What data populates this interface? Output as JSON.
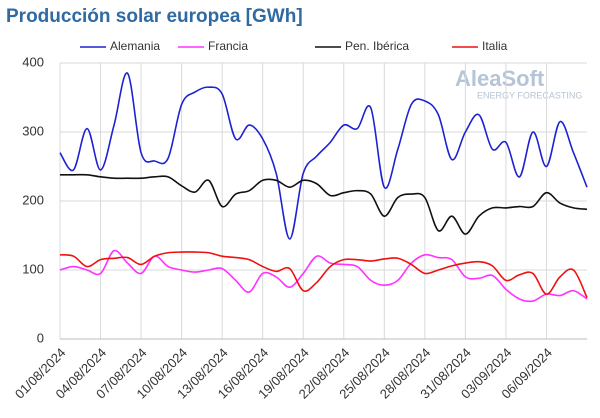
{
  "chart_data": {
    "type": "line",
    "title": "Producción solar europea [GWh]",
    "watermark": {
      "brand": "AleaSoft",
      "tagline": "ENERGY FORECASTING"
    },
    "categories": [
      "01/08/2024",
      null,
      null,
      "04/08/2024",
      null,
      null,
      "07/08/2024",
      null,
      null,
      "10/08/2024",
      null,
      null,
      "13/08/2024",
      null,
      null,
      "16/08/2024",
      null,
      null,
      "19/08/2024",
      null,
      null,
      "22/08/2024",
      null,
      null,
      "25/08/2024",
      null,
      null,
      "28/08/2024",
      null,
      null,
      "31/08/2024",
      null,
      null,
      "03/09/2024",
      null,
      null,
      "06/09/2024",
      null,
      null,
      null
    ],
    "series": [
      {
        "name": "Alemania",
        "color": "#1f22d1",
        "values": [
          270,
          245,
          305,
          245,
          310,
          385,
          270,
          258,
          262,
          340,
          358,
          365,
          355,
          290,
          310,
          290,
          240,
          145,
          240,
          265,
          285,
          310,
          305,
          335,
          220,
          275,
          340,
          345,
          325,
          260,
          300,
          325,
          275,
          285,
          235,
          300,
          250,
          315,
          270,
          220
        ]
      },
      {
        "name": "Francia",
        "color": "#ff33ff",
        "values": [
          100,
          105,
          100,
          95,
          128,
          110,
          95,
          120,
          105,
          100,
          97,
          100,
          102,
          85,
          68,
          95,
          90,
          75,
          95,
          120,
          110,
          108,
          105,
          85,
          78,
          85,
          110,
          122,
          118,
          115,
          90,
          88,
          92,
          72,
          58,
          55,
          65,
          63,
          70,
          58
        ]
      },
      {
        "name": "Pen. Ibérica",
        "color": "#111111",
        "values": [
          238,
          238,
          238,
          235,
          233,
          233,
          233,
          235,
          235,
          222,
          213,
          230,
          192,
          210,
          215,
          230,
          230,
          220,
          230,
          225,
          208,
          212,
          215,
          210,
          178,
          205,
          210,
          205,
          157,
          178,
          152,
          178,
          190,
          190,
          192,
          192,
          212,
          197,
          190,
          188
        ]
      },
      {
        "name": "Italia",
        "color": "#ee1111",
        "values": [
          122,
          120,
          105,
          115,
          117,
          118,
          108,
          120,
          125,
          126,
          126,
          125,
          120,
          118,
          115,
          105,
          98,
          102,
          70,
          82,
          105,
          115,
          115,
          113,
          116,
          117,
          108,
          95,
          100,
          106,
          110,
          112,
          106,
          85,
          93,
          95,
          65,
          90,
          100,
          60
        ]
      }
    ],
    "ylim": [
      0,
      400
    ],
    "yticks": [
      0,
      100,
      200,
      300,
      400
    ],
    "grid": true,
    "legend": "top"
  }
}
